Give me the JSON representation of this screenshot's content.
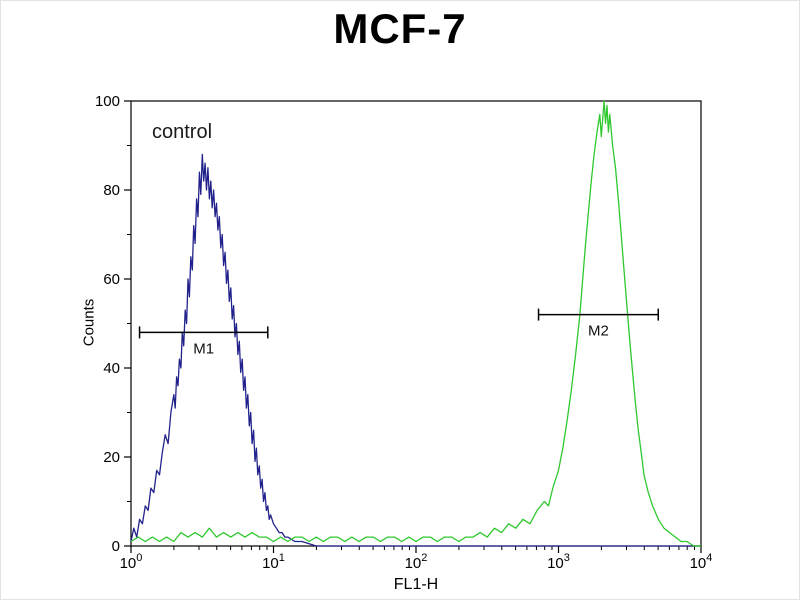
{
  "figure": {
    "background": "#ffffff",
    "border_color": "#e3e3e3"
  },
  "chart_data": {
    "type": "line",
    "subtype": "flow-cytometry-histogram",
    "title": "MCF-7",
    "xlabel": "FL1-H",
    "ylabel": "Counts",
    "x_scale": "log10",
    "x_decades": [
      0,
      4
    ],
    "ylim": [
      0,
      100
    ],
    "y_ticks": [
      0,
      20,
      40,
      60,
      80,
      100
    ],
    "y_minor_ticks": [
      10,
      30,
      50,
      70,
      90
    ],
    "x_tick_exponents": [
      0,
      1,
      2,
      3,
      4
    ],
    "axis_color": "#000000",
    "grid": false,
    "legend": false,
    "annotation": {
      "text": "control",
      "color": "#1a1a1a"
    },
    "markers": [
      {
        "label": "M1",
        "t_start": 0.06,
        "t_end": 0.96,
        "y": 48,
        "color": "#000000"
      },
      {
        "label": "M2",
        "t_start": 2.86,
        "t_end": 3.7,
        "y": 52,
        "color": "#000000"
      }
    ],
    "series": [
      {
        "name": "control",
        "color": "#22228c",
        "points": [
          [
            0.0,
            1
          ],
          [
            0.02,
            4
          ],
          [
            0.04,
            2
          ],
          [
            0.06,
            6
          ],
          [
            0.08,
            5
          ],
          [
            0.1,
            9
          ],
          [
            0.12,
            8
          ],
          [
            0.14,
            13
          ],
          [
            0.16,
            12
          ],
          [
            0.18,
            17
          ],
          [
            0.2,
            16
          ],
          [
            0.22,
            21
          ],
          [
            0.24,
            25
          ],
          [
            0.26,
            23
          ],
          [
            0.28,
            30
          ],
          [
            0.3,
            34
          ],
          [
            0.31,
            31
          ],
          [
            0.32,
            38
          ],
          [
            0.33,
            36
          ],
          [
            0.34,
            42
          ],
          [
            0.35,
            40
          ],
          [
            0.36,
            48
          ],
          [
            0.37,
            45
          ],
          [
            0.38,
            53
          ],
          [
            0.39,
            50
          ],
          [
            0.4,
            60
          ],
          [
            0.41,
            56
          ],
          [
            0.42,
            65
          ],
          [
            0.43,
            62
          ],
          [
            0.44,
            72
          ],
          [
            0.45,
            68
          ],
          [
            0.46,
            78
          ],
          [
            0.47,
            74
          ],
          [
            0.48,
            84
          ],
          [
            0.49,
            79
          ],
          [
            0.5,
            88
          ],
          [
            0.51,
            82
          ],
          [
            0.52,
            86
          ],
          [
            0.53,
            80
          ],
          [
            0.54,
            85
          ],
          [
            0.55,
            78
          ],
          [
            0.56,
            82
          ],
          [
            0.57,
            76
          ],
          [
            0.58,
            80
          ],
          [
            0.59,
            74
          ],
          [
            0.6,
            77
          ],
          [
            0.61,
            71
          ],
          [
            0.62,
            74
          ],
          [
            0.63,
            67
          ],
          [
            0.64,
            70
          ],
          [
            0.65,
            63
          ],
          [
            0.66,
            66
          ],
          [
            0.67,
            59
          ],
          [
            0.68,
            62
          ],
          [
            0.69,
            55
          ],
          [
            0.7,
            58
          ],
          [
            0.71,
            51
          ],
          [
            0.72,
            54
          ],
          [
            0.73,
            47
          ],
          [
            0.74,
            50
          ],
          [
            0.75,
            43
          ],
          [
            0.76,
            46
          ],
          [
            0.77,
            39
          ],
          [
            0.78,
            42
          ],
          [
            0.79,
            35
          ],
          [
            0.8,
            38
          ],
          [
            0.81,
            31
          ],
          [
            0.82,
            34
          ],
          [
            0.83,
            27
          ],
          [
            0.84,
            30
          ],
          [
            0.85,
            23
          ],
          [
            0.86,
            26
          ],
          [
            0.87,
            19
          ],
          [
            0.88,
            22
          ],
          [
            0.89,
            16
          ],
          [
            0.9,
            18
          ],
          [
            0.91,
            13
          ],
          [
            0.92,
            15
          ],
          [
            0.93,
            10
          ],
          [
            0.94,
            12
          ],
          [
            0.95,
            8
          ],
          [
            0.96,
            9
          ],
          [
            0.97,
            6
          ],
          [
            0.98,
            7
          ],
          [
            1.0,
            5
          ],
          [
            1.02,
            4
          ],
          [
            1.04,
            3
          ],
          [
            1.06,
            3
          ],
          [
            1.08,
            2
          ],
          [
            1.1,
            2
          ],
          [
            1.15,
            1
          ],
          [
            1.2,
            1
          ],
          [
            1.3,
            0
          ],
          [
            1.5,
            0
          ],
          [
            2.0,
            0
          ],
          [
            2.5,
            0
          ],
          [
            3.0,
            0
          ],
          [
            3.5,
            0
          ],
          [
            4.0,
            0
          ]
        ]
      },
      {
        "name": "green",
        "color": "#2fc82f",
        "points": [
          [
            0.0,
            1
          ],
          [
            0.05,
            2
          ],
          [
            0.1,
            1
          ],
          [
            0.15,
            2
          ],
          [
            0.2,
            1
          ],
          [
            0.25,
            2
          ],
          [
            0.3,
            1
          ],
          [
            0.35,
            3
          ],
          [
            0.4,
            2
          ],
          [
            0.45,
            3
          ],
          [
            0.5,
            2
          ],
          [
            0.55,
            4
          ],
          [
            0.6,
            2
          ],
          [
            0.65,
            3
          ],
          [
            0.7,
            2
          ],
          [
            0.75,
            3
          ],
          [
            0.8,
            2
          ],
          [
            0.85,
            3
          ],
          [
            0.9,
            2
          ],
          [
            0.95,
            2
          ],
          [
            1.0,
            1
          ],
          [
            1.05,
            2
          ],
          [
            1.1,
            1
          ],
          [
            1.15,
            2
          ],
          [
            1.2,
            2
          ],
          [
            1.25,
            1
          ],
          [
            1.3,
            2
          ],
          [
            1.35,
            1
          ],
          [
            1.4,
            2
          ],
          [
            1.45,
            2
          ],
          [
            1.5,
            1
          ],
          [
            1.55,
            2
          ],
          [
            1.6,
            1
          ],
          [
            1.65,
            2
          ],
          [
            1.7,
            2
          ],
          [
            1.75,
            1
          ],
          [
            1.8,
            2
          ],
          [
            1.85,
            2
          ],
          [
            1.9,
            1
          ],
          [
            1.95,
            2
          ],
          [
            2.0,
            1
          ],
          [
            2.05,
            2
          ],
          [
            2.1,
            2
          ],
          [
            2.15,
            1
          ],
          [
            2.2,
            2
          ],
          [
            2.25,
            2
          ],
          [
            2.3,
            1
          ],
          [
            2.35,
            2
          ],
          [
            2.4,
            2
          ],
          [
            2.45,
            3
          ],
          [
            2.5,
            2
          ],
          [
            2.55,
            4
          ],
          [
            2.6,
            3
          ],
          [
            2.65,
            5
          ],
          [
            2.7,
            4
          ],
          [
            2.75,
            6
          ],
          [
            2.8,
            5
          ],
          [
            2.85,
            8
          ],
          [
            2.9,
            10
          ],
          [
            2.93,
            9
          ],
          [
            2.96,
            13
          ],
          [
            3.0,
            17
          ],
          [
            3.03,
            22
          ],
          [
            3.06,
            28
          ],
          [
            3.09,
            35
          ],
          [
            3.12,
            43
          ],
          [
            3.15,
            52
          ],
          [
            3.17,
            60
          ],
          [
            3.19,
            68
          ],
          [
            3.21,
            75
          ],
          [
            3.23,
            82
          ],
          [
            3.25,
            88
          ],
          [
            3.27,
            93
          ],
          [
            3.29,
            97
          ],
          [
            3.3,
            92
          ],
          [
            3.31,
            96
          ],
          [
            3.32,
            100
          ],
          [
            3.33,
            95
          ],
          [
            3.34,
            99
          ],
          [
            3.35,
            93
          ],
          [
            3.36,
            97
          ],
          [
            3.38,
            90
          ],
          [
            3.4,
            85
          ],
          [
            3.42,
            78
          ],
          [
            3.44,
            70
          ],
          [
            3.46,
            62
          ],
          [
            3.48,
            54
          ],
          [
            3.5,
            46
          ],
          [
            3.52,
            39
          ],
          [
            3.54,
            32
          ],
          [
            3.56,
            26
          ],
          [
            3.58,
            21
          ],
          [
            3.6,
            16
          ],
          [
            3.63,
            12
          ],
          [
            3.66,
            9
          ],
          [
            3.7,
            6
          ],
          [
            3.74,
            4
          ],
          [
            3.78,
            3
          ],
          [
            3.82,
            2
          ],
          [
            3.86,
            1
          ],
          [
            3.9,
            1
          ],
          [
            3.95,
            0
          ],
          [
            4.0,
            0
          ]
        ]
      }
    ]
  }
}
